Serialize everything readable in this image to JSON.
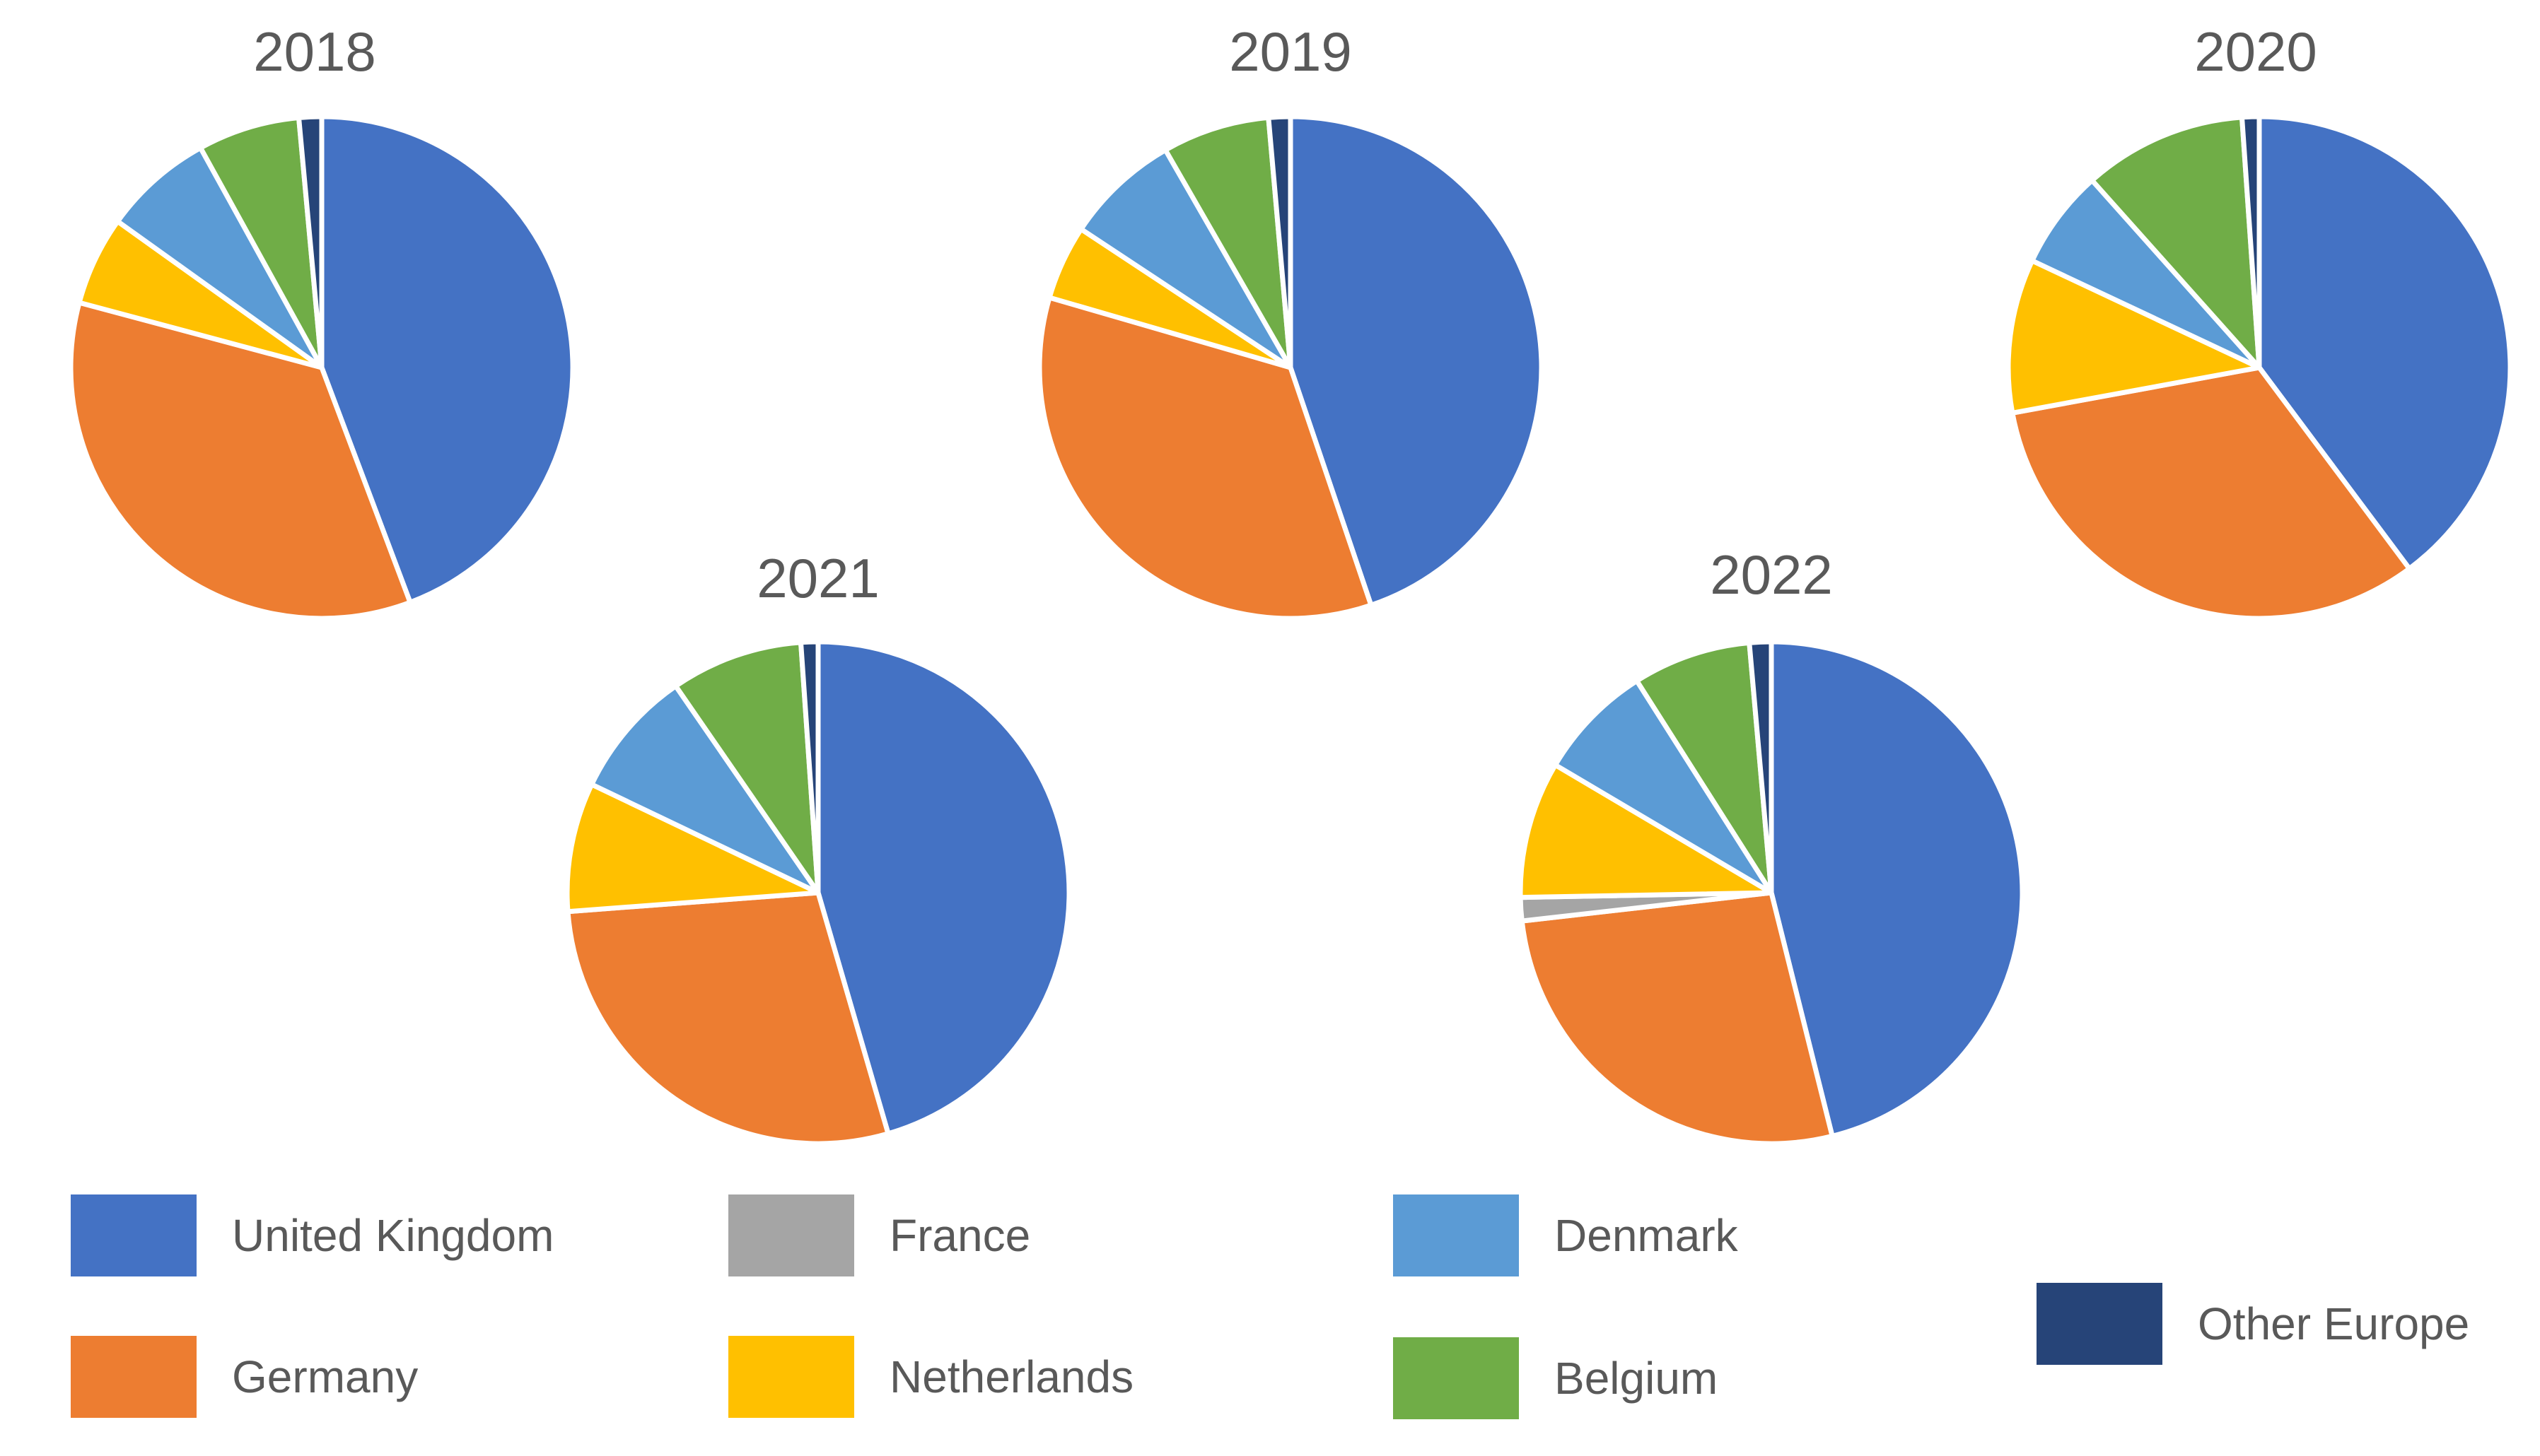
{
  "chart_data": [
    {
      "type": "pie",
      "title": "2018",
      "categories": [
        "United Kingdom",
        "Germany",
        "France",
        "Netherlands",
        "Denmark",
        "Belgium",
        "Other Europe"
      ],
      "values": [
        42.5,
        33.5,
        0,
        5.5,
        6.8,
        6.3,
        1.4
      ]
    },
    {
      "type": "pie",
      "title": "2019",
      "categories": [
        "United Kingdom",
        "Germany",
        "France",
        "Netherlands",
        "Denmark",
        "Belgium",
        "Other Europe"
      ],
      "values": [
        44.8,
        34.7,
        0,
        4.8,
        7.4,
        6.9,
        1.4
      ]
    },
    {
      "type": "pie",
      "title": "2020",
      "categories": [
        "United Kingdom",
        "Germany",
        "France",
        "Netherlands",
        "Denmark",
        "Belgium",
        "Other Europe"
      ],
      "values": [
        39.8,
        32.3,
        0,
        9.9,
        6.4,
        10.5,
        1.1
      ]
    },
    {
      "type": "pie",
      "title": "2021",
      "categories": [
        "United Kingdom",
        "Germany",
        "France",
        "Netherlands",
        "Denmark",
        "Belgium",
        "Other Europe"
      ],
      "values": [
        45.5,
        28.3,
        0,
        8.3,
        8.3,
        8.5,
        1.1
      ]
    },
    {
      "type": "pie",
      "title": "2022",
      "categories": [
        "United Kingdom",
        "Germany",
        "France",
        "Netherlands",
        "Denmark",
        "Belgium",
        "Other Europe"
      ],
      "values": [
        46.1,
        27.1,
        1.5,
        8.8,
        7.5,
        7.6,
        1.4
      ]
    }
  ],
  "legend": {
    "placement": "bottom",
    "items": [
      {
        "label": "United Kingdom",
        "color": "#4472C4"
      },
      {
        "label": "Germany",
        "color": "#ED7D31"
      },
      {
        "label": "France",
        "color": "#A5A5A5"
      },
      {
        "label": "Netherlands",
        "color": "#FFC000"
      },
      {
        "label": "Denmark",
        "color": "#5B9BD5"
      },
      {
        "label": "Belgium",
        "color": "#70AD47"
      },
      {
        "label": "Other Europe",
        "color": "#264478"
      }
    ]
  }
}
